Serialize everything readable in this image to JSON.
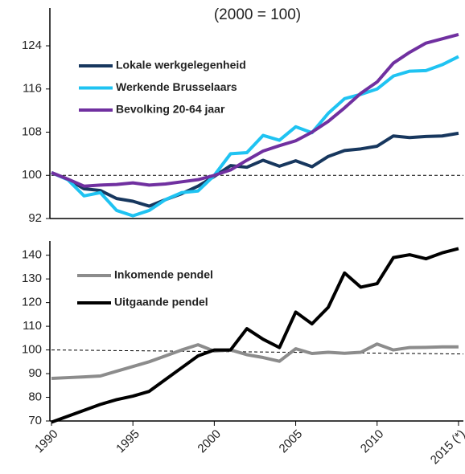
{
  "chart_data": [
    {
      "type": "line",
      "title": "(2000 = 100)",
      "x": [
        1990,
        1991,
        1992,
        1993,
        1994,
        1995,
        1996,
        1997,
        1998,
        1999,
        2000,
        2001,
        2002,
        2003,
        2004,
        2005,
        2006,
        2007,
        2008,
        2009,
        2010,
        2011,
        2012,
        2013,
        2014,
        2015
      ],
      "xlim": [
        1990,
        2015.3
      ],
      "ylim": [
        92,
        131
      ],
      "yticks": [
        92,
        100,
        108,
        116,
        124
      ],
      "hline": [
        100,
        100
      ],
      "series": [
        {
          "name": "Lokale werkgelegenheid",
          "color": "#17375e",
          "values": [
            100.5,
            99.3,
            97.5,
            97.2,
            95.7,
            95.2,
            94.3,
            95.5,
            96.6,
            98.0,
            99.8,
            101.8,
            101.5,
            102.8,
            101.7,
            102.7,
            101.6,
            103.5,
            104.6,
            104.9,
            105.4,
            107.3,
            107.0,
            107.2,
            107.3,
            107.8
          ]
        },
        {
          "name": "Werkende Brusselaars",
          "color": "#1fc3f2",
          "values": [
            100.5,
            99.2,
            96.2,
            96.8,
            93.5,
            92.5,
            93.5,
            95.5,
            96.8,
            97.1,
            100,
            104,
            104.2,
            107.4,
            106.5,
            109,
            107.9,
            111.5,
            114.2,
            115,
            116,
            118.4,
            119.3,
            119.4,
            120.5,
            122
          ]
        },
        {
          "name": "Bevolking 20-64 jaar",
          "color": "#7030a0",
          "values": [
            100.5,
            99.3,
            98,
            98.2,
            98.3,
            98.6,
            98.2,
            98.4,
            98.8,
            99.2,
            100,
            101,
            102.8,
            104.5,
            105.5,
            106.4,
            108,
            110,
            112.5,
            115.2,
            117.3,
            120.8,
            122.8,
            124.5,
            125.3,
            126.1
          ]
        }
      ]
    },
    {
      "type": "line",
      "x": [
        1990,
        1991,
        1992,
        1993,
        1994,
        1995,
        1996,
        1997,
        1998,
        1999,
        2000,
        2001,
        2002,
        2003,
        2004,
        2005,
        2006,
        2007,
        2008,
        2009,
        2010,
        2011,
        2012,
        2013,
        2014,
        2015
      ],
      "xlim": [
        1990,
        2015.3
      ],
      "xticks": [
        1990,
        1995,
        2000,
        2005,
        2010,
        {
          "value": 2015,
          "label": "2015 (*)"
        }
      ],
      "ylim": [
        70,
        146
      ],
      "yticks": [
        70,
        80,
        90,
        100,
        110,
        120,
        130,
        140
      ],
      "hline": [
        100,
        98.3
      ],
      "series": [
        {
          "name": "Inkomende pendel",
          "color": "#8c8c8c",
          "values": [
            88,
            88.3,
            88.6,
            89,
            91,
            93,
            95,
            97.5,
            100,
            102.2,
            99.5,
            100,
            98,
            96.8,
            95.2,
            100.5,
            98.5,
            99,
            98.6,
            99,
            102.5,
            100,
            101,
            101.1,
            101.3,
            101.3
          ]
        },
        {
          "name": "Uitgaande pendel",
          "color": "#000000",
          "values": [
            69.5,
            72,
            74.5,
            77,
            79,
            80.5,
            82.5,
            87.5,
            92.5,
            97.5,
            100,
            100,
            109,
            104.5,
            101,
            116,
            111,
            118,
            132.5,
            126.5,
            128,
            139,
            140.2,
            138.5,
            141,
            142.8
          ]
        }
      ]
    }
  ]
}
